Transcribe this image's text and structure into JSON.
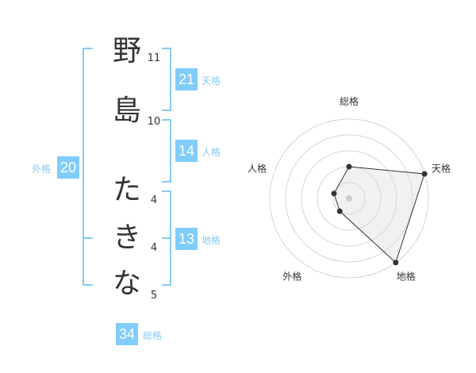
{
  "name": {
    "chars": [
      {
        "char": "野",
        "strokes": "11"
      },
      {
        "char": "島",
        "strokes": "10"
      },
      {
        "char": "た",
        "strokes": "4"
      },
      {
        "char": "き",
        "strokes": "4"
      },
      {
        "char": "な",
        "strokes": "5"
      }
    ]
  },
  "kaku": {
    "tenkaku": {
      "label": "天格",
      "value": "21"
    },
    "jinkaku": {
      "label": "人格",
      "value": "14"
    },
    "chikaku": {
      "label": "地格",
      "value": "13"
    },
    "gaikaku": {
      "label": "外格",
      "value": "20"
    },
    "soukaku": {
      "label": "総格",
      "value": "34"
    }
  },
  "colors": {
    "accent": "#80ccfa",
    "line": "#86cbf5",
    "text": "#333333"
  },
  "chart_data": {
    "type": "radar",
    "axes": [
      "総格",
      "天格",
      "地格",
      "外格",
      "人格"
    ],
    "values": [
      2,
      5,
      5,
      1,
      1
    ],
    "range": [
      0,
      5
    ],
    "rings": 5
  }
}
